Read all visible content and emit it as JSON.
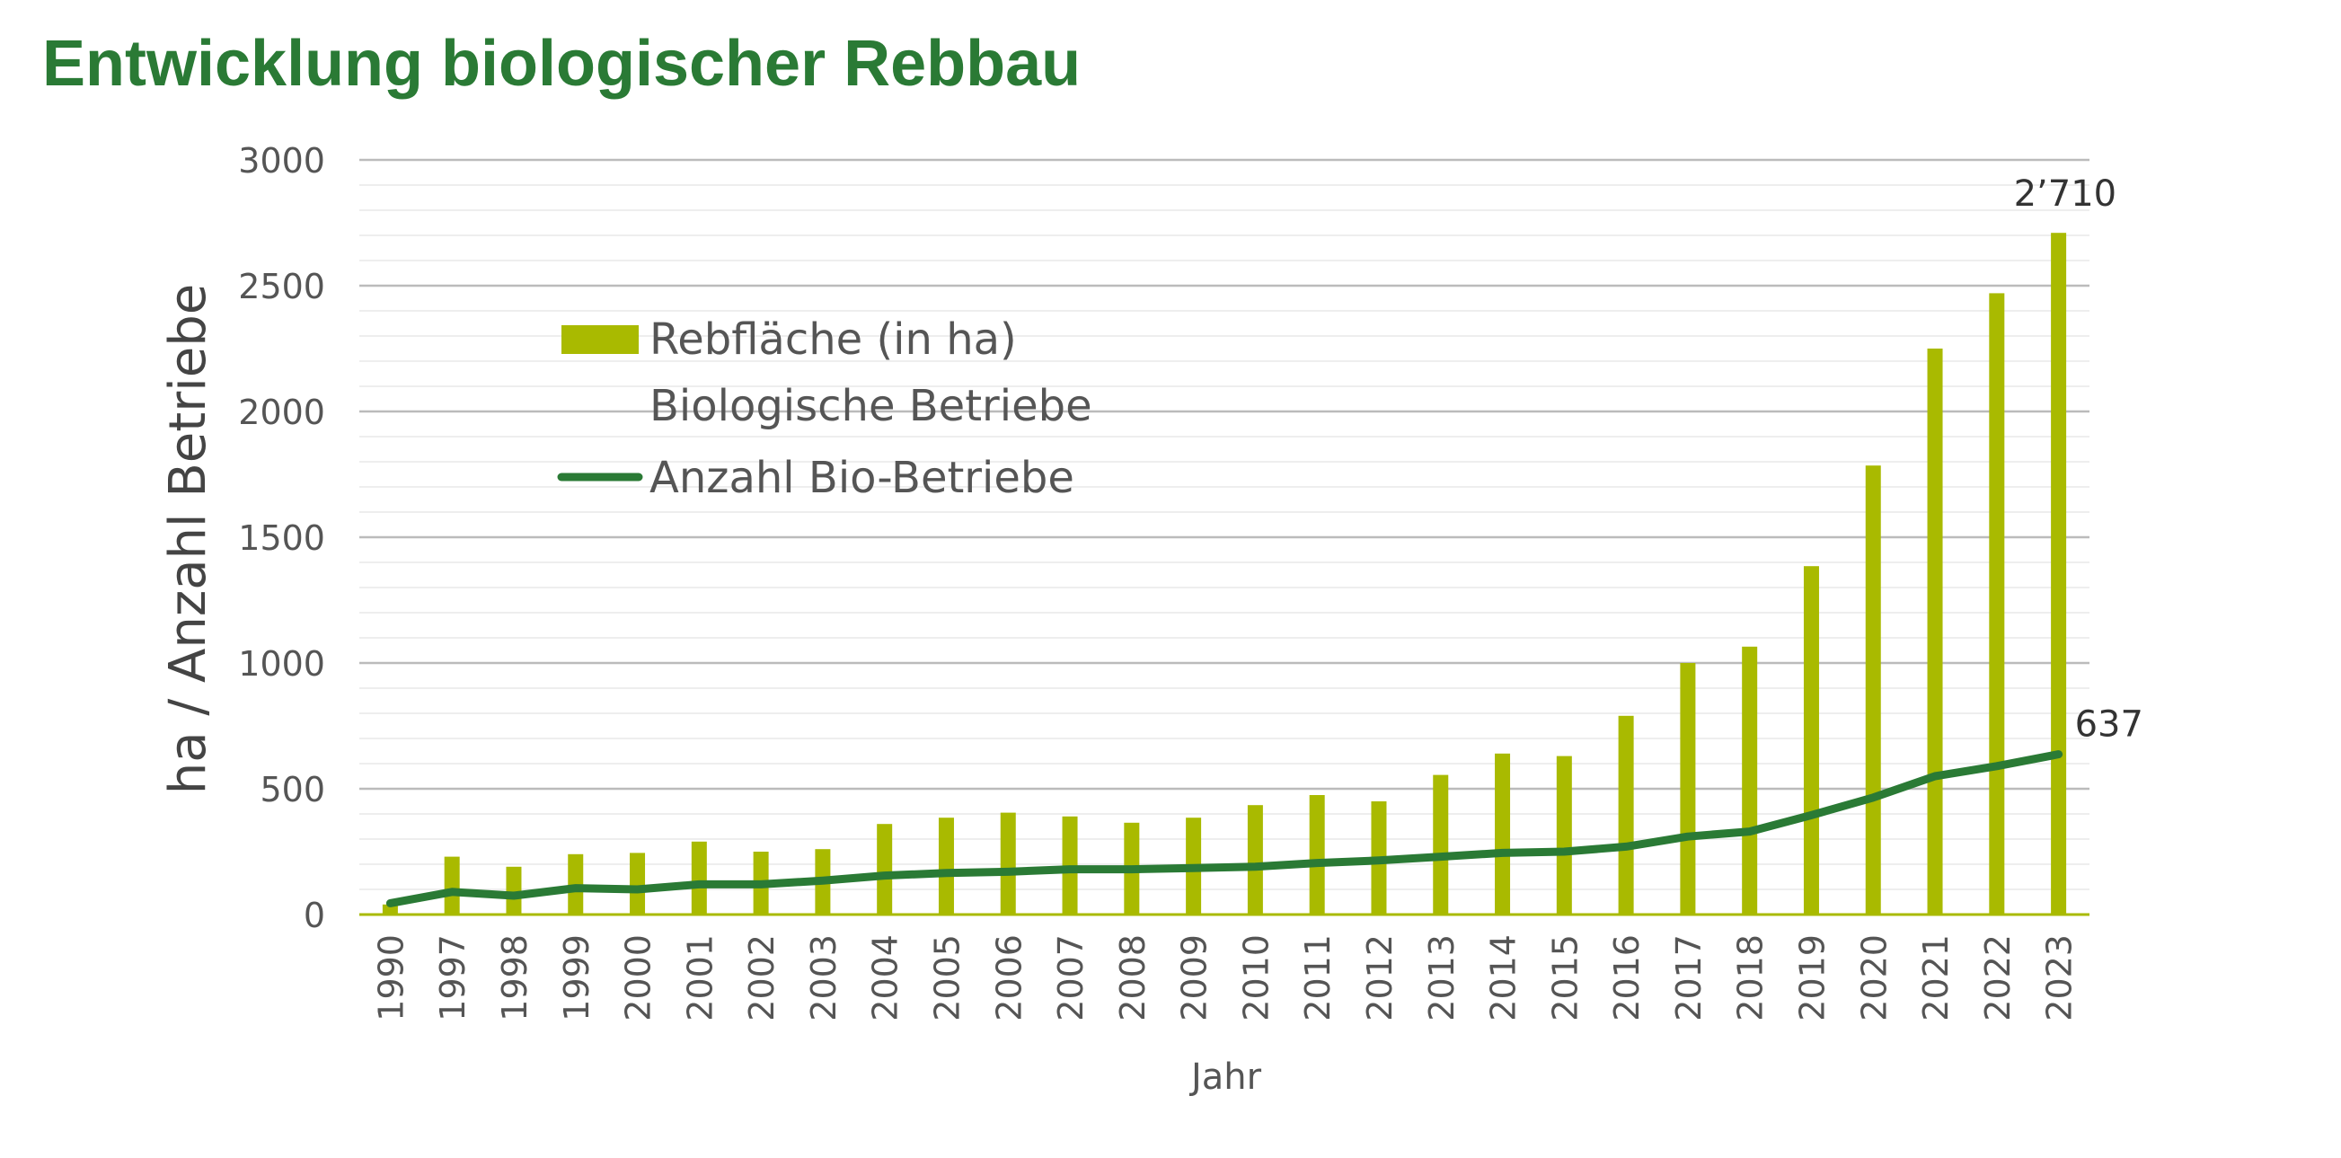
{
  "page": {
    "title": "Entwicklung biologischer Rebbau"
  },
  "colors": {
    "title": "#2a7a35",
    "bars": "#a9ba00",
    "line": "#2a7a35",
    "grid_major": "#bbbbbb",
    "grid_minor": "#eeeeee"
  },
  "chart_data": {
    "type": "bar+line",
    "xlabel": "Jahr",
    "ylabel": "ha / Anzahl Betriebe",
    "ylim": [
      0,
      3000
    ],
    "yticks": [
      "0",
      "500",
      "1000",
      "1500",
      "2000",
      "2500",
      "3000"
    ],
    "grid": true,
    "legend_position": "upper-left",
    "categories": [
      "1990",
      "1997",
      "1998",
      "1999",
      "2000",
      "2001",
      "2002",
      "2003",
      "2004",
      "2005",
      "2006",
      "2007",
      "2008",
      "2009",
      "2010",
      "2011",
      "2012",
      "2013",
      "2014",
      "2015",
      "2016",
      "2017",
      "2018",
      "2019",
      "2020",
      "2021",
      "2022",
      "2023"
    ],
    "legend": {
      "items": [
        {
          "label": "Rebfläche (in ha)",
          "marker": "bar"
        },
        {
          "label": "Biologische Betriebe",
          "marker": "none"
        },
        {
          "label": "Anzahl Bio-Betriebe",
          "marker": "line"
        }
      ]
    },
    "series": [
      {
        "name": "Rebfläche (in ha)",
        "type": "bar",
        "values": [
          40,
          230,
          190,
          240,
          245,
          290,
          250,
          260,
          360,
          385,
          405,
          390,
          365,
          385,
          435,
          475,
          450,
          555,
          640,
          630,
          790,
          1000,
          1065,
          1385,
          1785,
          2250,
          2470,
          2710
        ],
        "end_label": "2’710"
      },
      {
        "name": "Anzahl Bio-Betriebe",
        "type": "line",
        "values": [
          45,
          90,
          75,
          105,
          100,
          120,
          120,
          135,
          155,
          165,
          170,
          180,
          180,
          185,
          190,
          205,
          215,
          230,
          245,
          250,
          270,
          310,
          330,
          395,
          465,
          550,
          590,
          637
        ],
        "end_label": "637"
      }
    ]
  }
}
